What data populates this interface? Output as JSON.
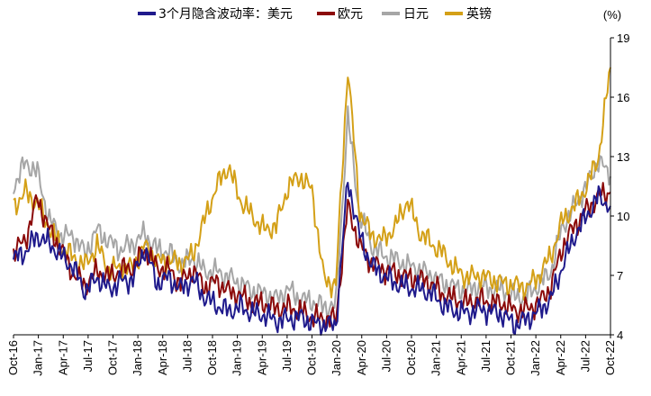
{
  "chart_data": {
    "type": "line",
    "title": "",
    "unit_label": "(%)",
    "xlabel": "",
    "ylabel": "",
    "ylim": [
      4,
      19
    ],
    "y_ticks": [
      4,
      7,
      10,
      13,
      16,
      19
    ],
    "x_tick_labels": [
      "Oct-16",
      "Jan-17",
      "Apr-17",
      "Jul-17",
      "Oct-17",
      "Jan-18",
      "Apr-18",
      "Jul-18",
      "Oct-18",
      "Jan-19",
      "Apr-19",
      "Jul-19",
      "Oct-19",
      "Jan-20",
      "Apr-20",
      "Jul-20",
      "Oct-20",
      "Jan-21",
      "Apr-21",
      "Jul-21",
      "Oct-21",
      "Jan-22",
      "Apr-22",
      "Jul-22",
      "Oct-22"
    ],
    "legend_position": "top",
    "grid": false,
    "series": [
      {
        "name": "3个月隐含波动率：美元",
        "color": "#1f1a8c",
        "values": [
          7.8,
          8.2,
          9.0,
          8.6,
          8.0,
          7.4,
          6.2,
          6.9,
          6.3,
          6.7,
          6.8,
          8.4,
          6.6,
          6.9,
          6.3,
          6.8,
          5.9,
          5.5,
          5.2,
          5.4,
          5.1,
          5.0,
          4.7,
          4.8,
          4.9,
          4.6,
          4.5,
          4.5,
          11.8,
          9.0,
          7.5,
          7.0,
          6.6,
          6.4,
          6.3,
          6.1,
          5.5,
          5.2,
          5.1,
          5.3,
          5.2,
          5.0,
          4.5,
          4.8,
          5.2,
          5.8,
          7.5,
          9.0,
          10.0,
          11.0,
          10.5
        ]
      },
      {
        "name": "欧元",
        "color": "#8b0a0a",
        "values": [
          8.2,
          8.8,
          10.9,
          9.3,
          8.3,
          7.1,
          6.5,
          7.2,
          6.9,
          7.3,
          7.4,
          8.3,
          7.4,
          7.3,
          6.6,
          7.3,
          6.4,
          6.7,
          6.2,
          6.0,
          5.6,
          5.6,
          5.3,
          5.4,
          5.2,
          4.9,
          4.8,
          4.8,
          10.5,
          8.5,
          7.6,
          7.3,
          7.1,
          6.9,
          6.8,
          6.6,
          6.0,
          5.8,
          5.6,
          5.8,
          5.6,
          5.6,
          5.2,
          5.3,
          5.6,
          6.4,
          8.5,
          9.5,
          10.3,
          11.0,
          11.2
        ]
      },
      {
        "name": "日元",
        "color": "#a6a6a6",
        "values": [
          11.5,
          12.7,
          12.2,
          9.8,
          9.0,
          9.0,
          8.1,
          9.3,
          8.7,
          8.3,
          8.6,
          9.1,
          8.3,
          8.2,
          7.5,
          7.9,
          7.2,
          7.2,
          6.9,
          6.6,
          6.2,
          6.1,
          5.8,
          6.3,
          5.8,
          5.7,
          5.4,
          5.5,
          15.0,
          10.0,
          8.5,
          8.0,
          7.8,
          7.5,
          7.3,
          7.0,
          6.6,
          6.4,
          6.2,
          6.5,
          6.3,
          6.3,
          5.9,
          6.0,
          6.5,
          7.2,
          9.5,
          10.5,
          11.5,
          12.8,
          12.0
        ]
      },
      {
        "name": "英镑",
        "color": "#d4a017",
        "values": [
          10.5,
          11.2,
          10.6,
          9.4,
          8.5,
          7.9,
          7.5,
          8.5,
          7.3,
          7.4,
          7.4,
          8.5,
          7.7,
          7.8,
          7.6,
          8.0,
          9.8,
          11.5,
          12.5,
          10.8,
          10.0,
          9.3,
          9.5,
          11.5,
          12.0,
          11.3,
          6.8,
          6.5,
          17.5,
          10.2,
          9.0,
          8.8,
          9.5,
          10.8,
          9.2,
          8.6,
          8.1,
          7.3,
          6.9,
          7.0,
          6.8,
          6.6,
          6.5,
          6.4,
          7.0,
          8.0,
          9.8,
          10.5,
          11.5,
          13.0,
          17.5
        ]
      }
    ]
  }
}
